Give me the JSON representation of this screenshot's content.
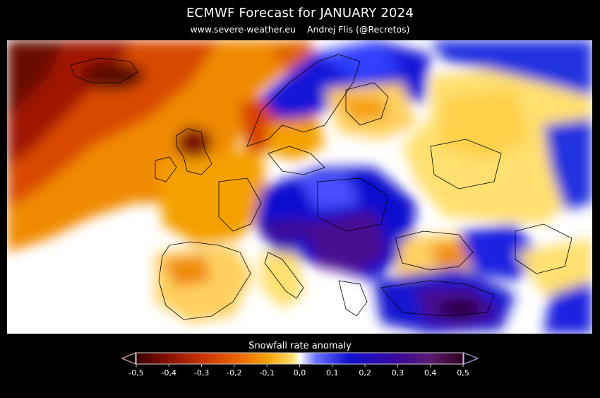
{
  "header": {
    "title": "ECMWF Forecast for JANUARY 2024",
    "website": "www.severe-weather.eu",
    "author": "Andrej Flis (@Recretos)"
  },
  "legend": {
    "title": "Snowfall rate anomaly",
    "ticks": [
      "-0,5",
      "-0,4",
      "-0,3",
      "-0,2",
      "-0,1",
      "0,0",
      "0,1",
      "0,2",
      "0,3",
      "0,4",
      "0,5"
    ],
    "colors": [
      "#3a0000",
      "#8a1200",
      "#c83200",
      "#e86000",
      "#f4a000",
      "#ffe070",
      "#ffffff",
      "#6a70ff",
      "#1010d0",
      "#3a0a9a",
      "#5a1a70",
      "#300020"
    ],
    "arrow_left_color": "#f0b0b0",
    "arrow_right_color": "#b0b0f0"
  }
}
